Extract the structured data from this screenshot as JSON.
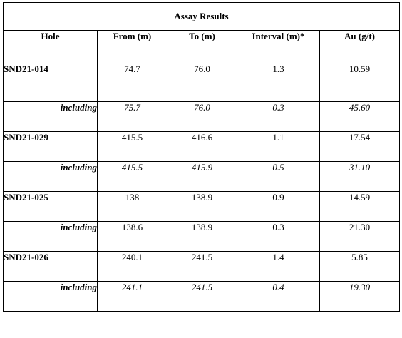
{
  "table": {
    "title": "Assay Results",
    "headers": [
      "Hole",
      "From (m)",
      "To (m)",
      "Interval (m)*",
      "Au (g/t)"
    ],
    "rows": [
      {
        "hole": "SND21-014",
        "from": "74.7",
        "to": "76.0",
        "interval": "1.3",
        "au": "10.59"
      },
      {
        "hole": "including",
        "from": "75.7",
        "to": "76.0",
        "interval": "0.3",
        "au": "45.60"
      },
      {
        "hole": "SND21-029",
        "from": "415.5",
        "to": "416.6",
        "interval": "1.1",
        "au": "17.54"
      },
      {
        "hole": "including",
        "from": "415.5",
        "to": "415.9",
        "interval": "0.5",
        "au": "31.10"
      },
      {
        "hole": "SND21-025",
        "from": "138",
        "to": "138.9",
        "interval": "0.9",
        "au": "14.59"
      },
      {
        "hole": "including",
        "from": "138.6",
        "to": "138.9",
        "interval": "0.3",
        "au": "21.30"
      },
      {
        "hole": "SND21-026",
        "from": "240.1",
        "to": "241.5",
        "interval": "1.4",
        "au": "5.85"
      },
      {
        "hole": "including",
        "from": "241.1",
        "to": "241.5",
        "interval": "0.4",
        "au": "19.30"
      }
    ]
  }
}
